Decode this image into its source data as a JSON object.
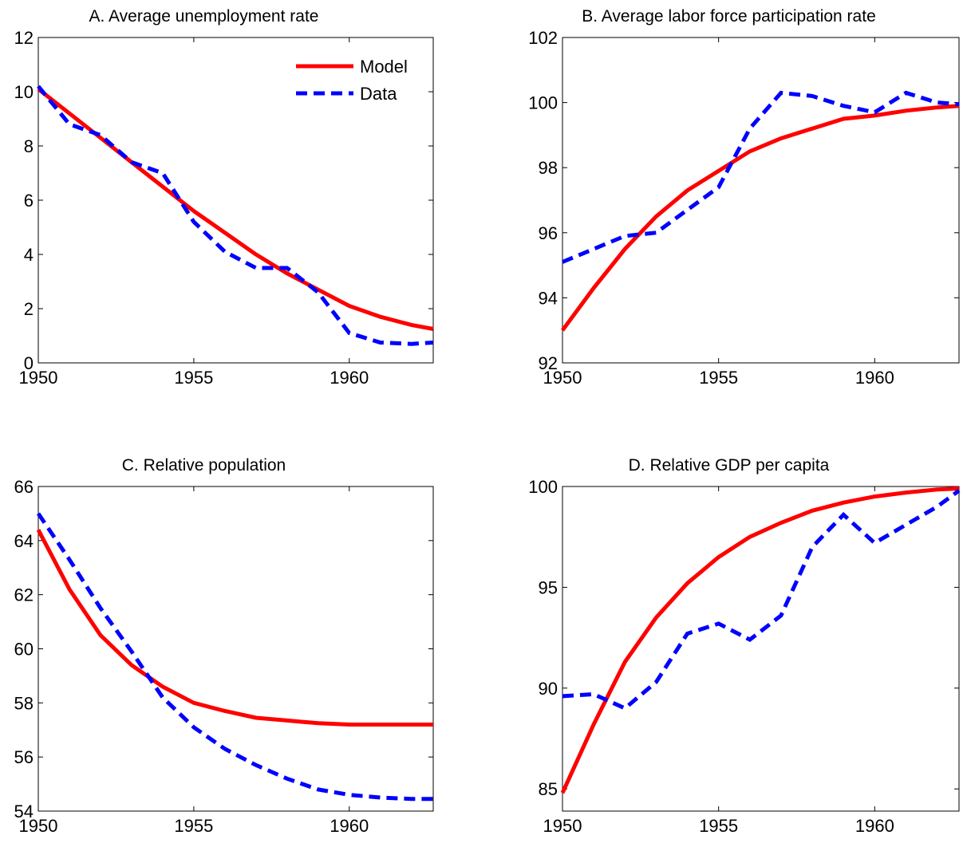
{
  "chart_data": [
    {
      "type": "line",
      "title": "A. Average unemployment rate",
      "x": [
        1950,
        1951,
        1952,
        1953,
        1954,
        1955,
        1956,
        1957,
        1958,
        1959,
        1960,
        1961,
        1962,
        1962.7
      ],
      "series": [
        {
          "name": "Model",
          "color": "#ff0000",
          "style": "solid",
          "values": [
            10.1,
            9.2,
            8.3,
            7.4,
            6.5,
            5.6,
            4.8,
            4.0,
            3.3,
            2.7,
            2.1,
            1.7,
            1.4,
            1.25
          ]
        },
        {
          "name": "Data",
          "color": "#0000ff",
          "style": "dashed",
          "values": [
            10.2,
            8.8,
            8.4,
            7.4,
            7.0,
            5.2,
            4.1,
            3.5,
            3.5,
            2.6,
            1.1,
            0.75,
            0.7,
            0.75
          ]
        }
      ],
      "xlim": [
        1950,
        1962.7
      ],
      "ylim": [
        0,
        12
      ],
      "xticks": [
        1950,
        1955,
        1960
      ],
      "yticks": [
        0,
        2,
        4,
        6,
        8,
        10,
        12
      ],
      "legend": "upper right"
    },
    {
      "type": "line",
      "title": "B. Average labor force participation rate",
      "x": [
        1950,
        1951,
        1952,
        1953,
        1954,
        1955,
        1956,
        1957,
        1958,
        1959,
        1960,
        1961,
        1962,
        1962.7
      ],
      "series": [
        {
          "name": "Model",
          "color": "#ff0000",
          "style": "solid",
          "values": [
            93.0,
            94.3,
            95.5,
            96.5,
            97.3,
            97.9,
            98.5,
            98.9,
            99.2,
            99.5,
            99.6,
            99.75,
            99.85,
            99.9
          ]
        },
        {
          "name": "Data",
          "color": "#0000ff",
          "style": "dashed",
          "values": [
            95.1,
            95.5,
            95.9,
            96.0,
            96.7,
            97.4,
            99.2,
            100.3,
            100.2,
            99.9,
            99.7,
            100.3,
            100.0,
            99.95
          ]
        }
      ],
      "xlim": [
        1950,
        1962.7
      ],
      "ylim": [
        92,
        102
      ],
      "xticks": [
        1950,
        1955,
        1960
      ],
      "yticks": [
        92,
        94,
        96,
        98,
        100,
        102
      ]
    },
    {
      "type": "line",
      "title": "C. Relative population",
      "x": [
        1950,
        1951,
        1952,
        1953,
        1954,
        1955,
        1956,
        1957,
        1958,
        1959,
        1960,
        1961,
        1962,
        1962.7
      ],
      "series": [
        {
          "name": "Model",
          "color": "#ff0000",
          "style": "solid",
          "values": [
            64.4,
            62.2,
            60.5,
            59.4,
            58.6,
            58.0,
            57.7,
            57.45,
            57.35,
            57.25,
            57.2,
            57.2,
            57.2,
            57.2
          ]
        },
        {
          "name": "Data",
          "color": "#0000ff",
          "style": "dashed",
          "values": [
            65.0,
            63.3,
            61.5,
            59.9,
            58.2,
            57.1,
            56.3,
            55.7,
            55.2,
            54.8,
            54.6,
            54.5,
            54.45,
            54.45
          ]
        }
      ],
      "xlim": [
        1950,
        1962.7
      ],
      "ylim": [
        54,
        66
      ],
      "xticks": [
        1950,
        1955,
        1960
      ],
      "yticks": [
        54,
        56,
        58,
        60,
        62,
        64,
        66
      ]
    },
    {
      "type": "line",
      "title": "D. Relative GDP per capita",
      "x": [
        1950,
        1951,
        1952,
        1953,
        1954,
        1955,
        1956,
        1957,
        1958,
        1959,
        1960,
        1961,
        1962,
        1962.7
      ],
      "series": [
        {
          "name": "Model",
          "color": "#ff0000",
          "style": "solid",
          "values": [
            84.8,
            88.2,
            91.3,
            93.5,
            95.2,
            96.5,
            97.5,
            98.2,
            98.8,
            99.2,
            99.5,
            99.7,
            99.85,
            99.9
          ]
        },
        {
          "name": "Data",
          "color": "#0000ff",
          "style": "dashed",
          "values": [
            89.6,
            89.7,
            89.0,
            90.3,
            92.7,
            93.2,
            92.4,
            93.6,
            97.0,
            98.6,
            97.2,
            98.1,
            99.0,
            99.8
          ]
        }
      ],
      "xlim": [
        1950,
        1962.7
      ],
      "ylim": [
        83.9,
        100
      ],
      "xticks": [
        1950,
        1955,
        1960
      ],
      "yticks": [
        85,
        90,
        95,
        100
      ]
    }
  ]
}
